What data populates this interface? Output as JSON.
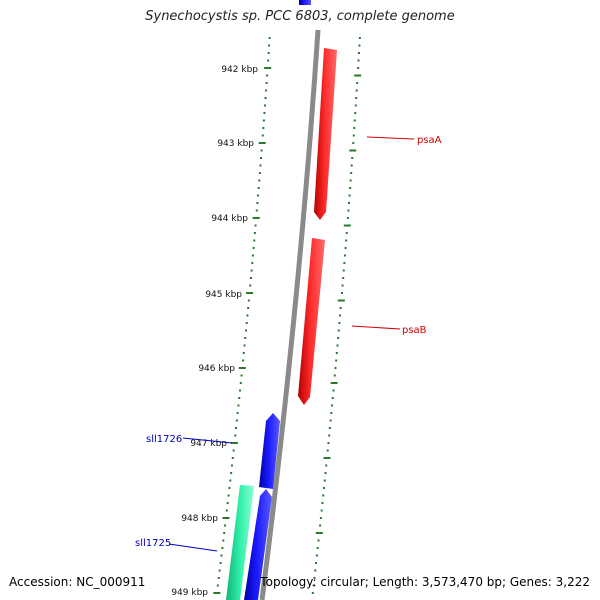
{
  "title": "Synechocystis sp. PCC 6803, complete genome",
  "footer": {
    "accession": "Accession: NC_000911",
    "summary": "Topology: circular; Length: 3,573,470 bp; Genes: 3,222"
  },
  "colors": {
    "backbone": "#8a8a8a",
    "ticks": "#2a7a2a",
    "gene_red": "#ff1a1a",
    "gene_blue": "#1a1aff",
    "gene_teal": "#22e6a0"
  },
  "ticks": [
    {
      "label": "942 kbp"
    },
    {
      "label": "943 kbp"
    },
    {
      "label": "944 kbp"
    },
    {
      "label": "945 kbp"
    },
    {
      "label": "946 kbp"
    },
    {
      "label": "947 kbp"
    },
    {
      "label": "948 kbp"
    },
    {
      "label": "949 kbp"
    }
  ],
  "genes": [
    {
      "name": "psaA",
      "color": "gene_red"
    },
    {
      "name": "psaB",
      "color": "gene_red"
    },
    {
      "name": "sll1726",
      "color": "gene_blue"
    },
    {
      "name": "sll1725",
      "color": "gene_blue"
    }
  ]
}
